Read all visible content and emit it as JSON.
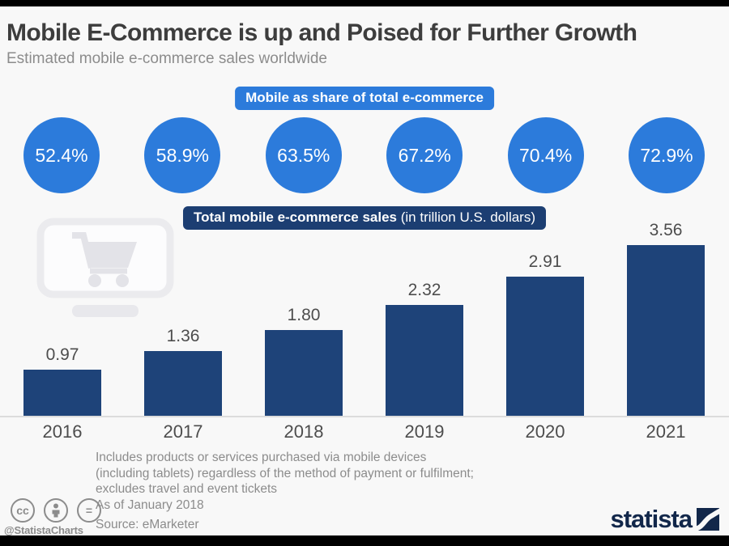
{
  "header": {
    "title": "Mobile E-Commerce is up and Poised for Further Growth",
    "subtitle": "Estimated mobile e-commerce sales worldwide"
  },
  "share_section": {
    "badge": "Mobile as share of total e-commerce"
  },
  "sales_section": {
    "badge_bold": "Total mobile e-commerce sales",
    "badge_regular": "(in trillion U.S. dollars)"
  },
  "chart_data": {
    "type": "bar",
    "title": "Mobile E-Commerce is up and Poised for Further Growth",
    "subtitle": "Estimated mobile e-commerce sales worldwide",
    "categories": [
      "2016",
      "2017",
      "2018",
      "2019",
      "2020",
      "2021"
    ],
    "series": [
      {
        "name": "Mobile as share of total e-commerce",
        "unit": "%",
        "display": "circle-labels",
        "values": [
          52.4,
          58.9,
          63.5,
          67.2,
          70.4,
          72.9
        ],
        "labels": [
          "52.4%",
          "58.9%",
          "63.5%",
          "67.2%",
          "70.4%",
          "72.9%"
        ]
      },
      {
        "name": "Total mobile e-commerce sales",
        "unit": "trillion U.S. dollars",
        "display": "bars",
        "values": [
          0.97,
          1.36,
          1.8,
          2.32,
          2.91,
          3.56
        ],
        "labels": [
          "0.97",
          "1.36",
          "1.80",
          "2.32",
          "2.91",
          "3.56"
        ]
      }
    ],
    "ylim": [
      0,
      3.56
    ],
    "grid": false,
    "legend_position": "none",
    "value_labels_shown": true
  },
  "footnote": {
    "line1": "Includes products or services purchased via mobile devices",
    "line2": "(including tablets) regardless of the method of payment or fulfilment;",
    "line3": "excludes travel and event tickets",
    "as_of": "As of January 2018",
    "source": "Source: eMarketer"
  },
  "branding": {
    "handle": "@StatistaCharts",
    "logo_text": "statista",
    "license_icons": [
      "cc-icon",
      "attribution-icon",
      "no-derivatives-icon"
    ]
  },
  "colors": {
    "accent_blue": "#2c7bdb",
    "bar_navy": "#1e4379",
    "badge_navy": "#1c3e72",
    "background": "#f8f8f8",
    "text_dark": "#3d3d3d",
    "text_gray": "#8c8c8c",
    "logo_navy": "#12274a"
  }
}
